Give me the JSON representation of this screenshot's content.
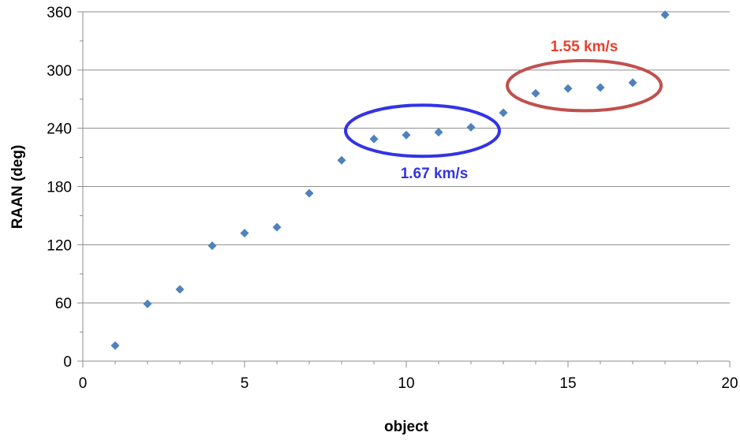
{
  "chart_data": {
    "type": "scatter",
    "xlabel": "object",
    "ylabel": "RAAN  (deg)",
    "xlim": [
      0,
      20
    ],
    "ylim": [
      0,
      360
    ],
    "x_ticks": [
      "0",
      "5",
      "10",
      "15",
      "20"
    ],
    "y_ticks": [
      "0",
      "60",
      "120",
      "180",
      "240",
      "300",
      "360"
    ],
    "grid": "horizontal",
    "marker_color": "#4F81BD",
    "series": [
      {
        "x": [
          1,
          2,
          3,
          4,
          5,
          6,
          7,
          8,
          9,
          10,
          11,
          12,
          13,
          14,
          15,
          16,
          17,
          18
        ],
        "y": [
          16,
          59,
          74,
          119,
          132,
          138,
          173,
          207,
          229,
          233,
          236,
          241,
          256,
          276,
          281,
          282,
          287,
          357
        ]
      }
    ],
    "annotations": [
      {
        "text": "1.67 km/s",
        "color": "#3333E6",
        "objects": [
          9,
          10,
          11,
          12
        ]
      },
      {
        "text": "1.55 km/s",
        "color": "#E8412C",
        "ellipse_color": "#C0504D",
        "objects": [
          14,
          15,
          16,
          17
        ]
      }
    ]
  }
}
